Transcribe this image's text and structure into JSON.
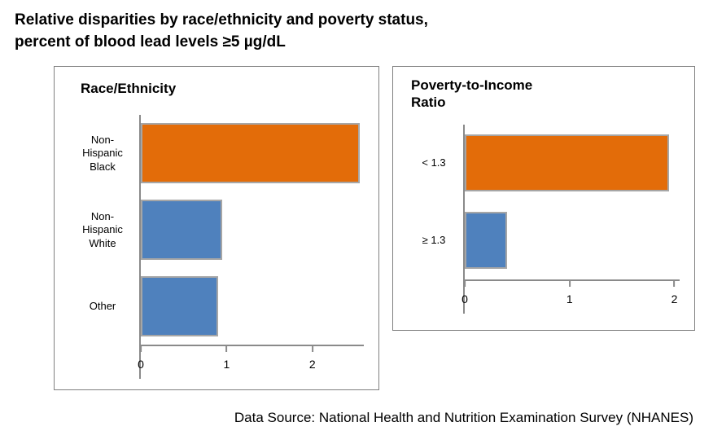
{
  "page_title": "Relative disparities by race/ethnicity and poverty status,\npercent of blood lead levels ≥5 µg/dL",
  "data_source": "Data Source: National Health and Nutrition Examination Survey (NHANES)",
  "colors": {
    "orange": "#E36C09",
    "blue": "#4F81BD",
    "bar_border": "#A6A6A6",
    "panel_border": "#808080"
  },
  "chart_data": [
    {
      "type": "bar",
      "orientation": "horizontal",
      "title": "Race/Ethnicity",
      "categories": [
        "Non-Hispanic Black",
        "Non-Hispanic White",
        "Other"
      ],
      "values": [
        2.55,
        0.95,
        0.9
      ],
      "bar_colors": [
        "#E36C09",
        "#4F81BD",
        "#4F81BD"
      ],
      "xticks": [
        0,
        1,
        2
      ],
      "xlim": [
        0,
        2.6
      ],
      "ylabel": "",
      "xlabel": "",
      "legend": false,
      "grid": false
    },
    {
      "type": "bar",
      "orientation": "horizontal",
      "title": "Poverty-to-Income Ratio",
      "categories": [
        "< 1.3",
        "≥ 1.3"
      ],
      "values": [
        1.95,
        0.4
      ],
      "bar_colors": [
        "#E36C09",
        "#4F81BD"
      ],
      "xticks": [
        0,
        1,
        2
      ],
      "xlim": [
        0,
        2.05
      ],
      "ylabel": "",
      "xlabel": "",
      "legend": false,
      "grid": false
    }
  ]
}
